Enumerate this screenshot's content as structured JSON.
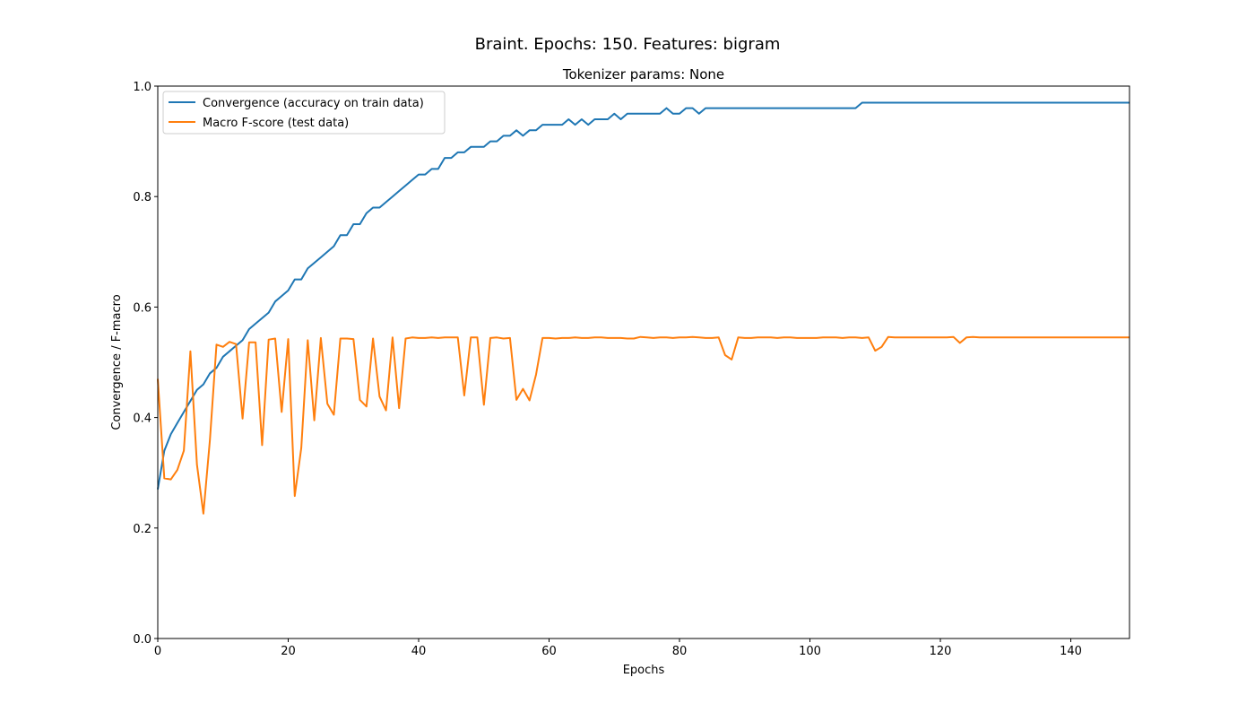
{
  "figure": {
    "suptitle": "Braint. Epochs: 150. Features: bigram"
  },
  "chart_data": {
    "type": "line",
    "title": "Tokenizer params: None",
    "xlabel": "Epochs",
    "ylabel": "Convergence / F-macro",
    "xlim": [
      0,
      149
    ],
    "ylim": [
      0,
      1.0
    ],
    "xticks": [
      0,
      20,
      40,
      60,
      80,
      100,
      120,
      140
    ],
    "yticks": [
      0.0,
      0.2,
      0.4,
      0.6,
      0.8,
      1.0
    ],
    "ytick_labels": [
      "0.0",
      "0.2",
      "0.4",
      "0.6",
      "0.8",
      "1.0"
    ],
    "grid": false,
    "legend_position": "upper-left",
    "series": [
      {
        "name": "Convergence (accuracy on train data)",
        "color": "#1f77b4",
        "values": [
          0.27,
          0.34,
          0.37,
          0.39,
          0.41,
          0.43,
          0.45,
          0.46,
          0.48,
          0.49,
          0.51,
          0.52,
          0.53,
          0.54,
          0.56,
          0.57,
          0.58,
          0.59,
          0.61,
          0.62,
          0.63,
          0.65,
          0.65,
          0.67,
          0.68,
          0.69,
          0.7,
          0.71,
          0.73,
          0.73,
          0.75,
          0.75,
          0.77,
          0.78,
          0.78,
          0.79,
          0.8,
          0.81,
          0.82,
          0.83,
          0.84,
          0.84,
          0.85,
          0.85,
          0.87,
          0.87,
          0.88,
          0.88,
          0.89,
          0.89,
          0.89,
          0.9,
          0.9,
          0.91,
          0.91,
          0.92,
          0.91,
          0.92,
          0.92,
          0.93,
          0.93,
          0.93,
          0.93,
          0.94,
          0.93,
          0.94,
          0.93,
          0.94,
          0.94,
          0.94,
          0.95,
          0.94,
          0.95,
          0.95,
          0.95,
          0.95,
          0.95,
          0.95,
          0.96,
          0.95,
          0.95,
          0.96,
          0.96,
          0.95,
          0.96,
          0.96,
          0.96,
          0.96,
          0.96,
          0.96,
          0.96,
          0.96,
          0.96,
          0.96,
          0.96,
          0.96,
          0.96,
          0.96,
          0.96,
          0.96,
          0.96,
          0.96,
          0.96,
          0.96,
          0.96,
          0.96,
          0.96,
          0.96,
          0.97,
          0.97,
          0.97,
          0.97,
          0.97,
          0.97,
          0.97,
          0.97,
          0.97,
          0.97,
          0.97,
          0.97,
          0.97,
          0.97,
          0.97,
          0.97,
          0.97,
          0.97,
          0.97,
          0.97,
          0.97,
          0.97,
          0.97,
          0.97,
          0.97,
          0.97,
          0.97,
          0.97,
          0.97,
          0.97,
          0.97,
          0.97,
          0.97,
          0.97,
          0.97,
          0.97,
          0.97,
          0.97,
          0.97,
          0.97,
          0.97,
          0.97
        ]
      },
      {
        "name": "Macro F-score (test data)",
        "color": "#ff7f0e",
        "values": [
          0.47,
          0.29,
          0.288,
          0.305,
          0.34,
          0.52,
          0.315,
          0.226,
          0.36,
          0.532,
          0.528,
          0.537,
          0.533,
          0.398,
          0.536,
          0.536,
          0.35,
          0.541,
          0.543,
          0.41,
          0.542,
          0.258,
          0.345,
          0.54,
          0.395,
          0.544,
          0.425,
          0.405,
          0.543,
          0.543,
          0.542,
          0.432,
          0.42,
          0.543,
          0.438,
          0.413,
          0.545,
          0.417,
          0.543,
          0.545,
          0.544,
          0.544,
          0.545,
          0.544,
          0.545,
          0.545,
          0.545,
          0.44,
          0.545,
          0.545,
          0.423,
          0.544,
          0.545,
          0.543,
          0.544,
          0.432,
          0.452,
          0.431,
          0.478,
          0.544,
          0.544,
          0.543,
          0.544,
          0.544,
          0.545,
          0.544,
          0.544,
          0.545,
          0.545,
          0.544,
          0.544,
          0.544,
          0.543,
          0.543,
          0.546,
          0.545,
          0.544,
          0.545,
          0.545,
          0.544,
          0.545,
          0.545,
          0.546,
          0.545,
          0.544,
          0.544,
          0.545,
          0.513,
          0.505,
          0.545,
          0.544,
          0.544,
          0.545,
          0.545,
          0.545,
          0.544,
          0.545,
          0.545,
          0.544,
          0.544,
          0.544,
          0.544,
          0.545,
          0.545,
          0.545,
          0.544,
          0.545,
          0.545,
          0.544,
          0.545,
          0.521,
          0.528,
          0.546,
          0.545,
          0.545,
          0.545,
          0.545,
          0.545,
          0.545,
          0.545,
          0.545,
          0.545,
          0.546,
          0.535,
          0.545,
          0.546,
          0.545,
          0.545,
          0.545,
          0.545,
          0.545,
          0.545,
          0.545,
          0.545,
          0.545,
          0.545,
          0.545,
          0.545,
          0.545,
          0.545,
          0.545,
          0.545,
          0.545,
          0.545,
          0.545,
          0.545,
          0.545,
          0.545,
          0.545,
          0.545
        ]
      }
    ]
  }
}
